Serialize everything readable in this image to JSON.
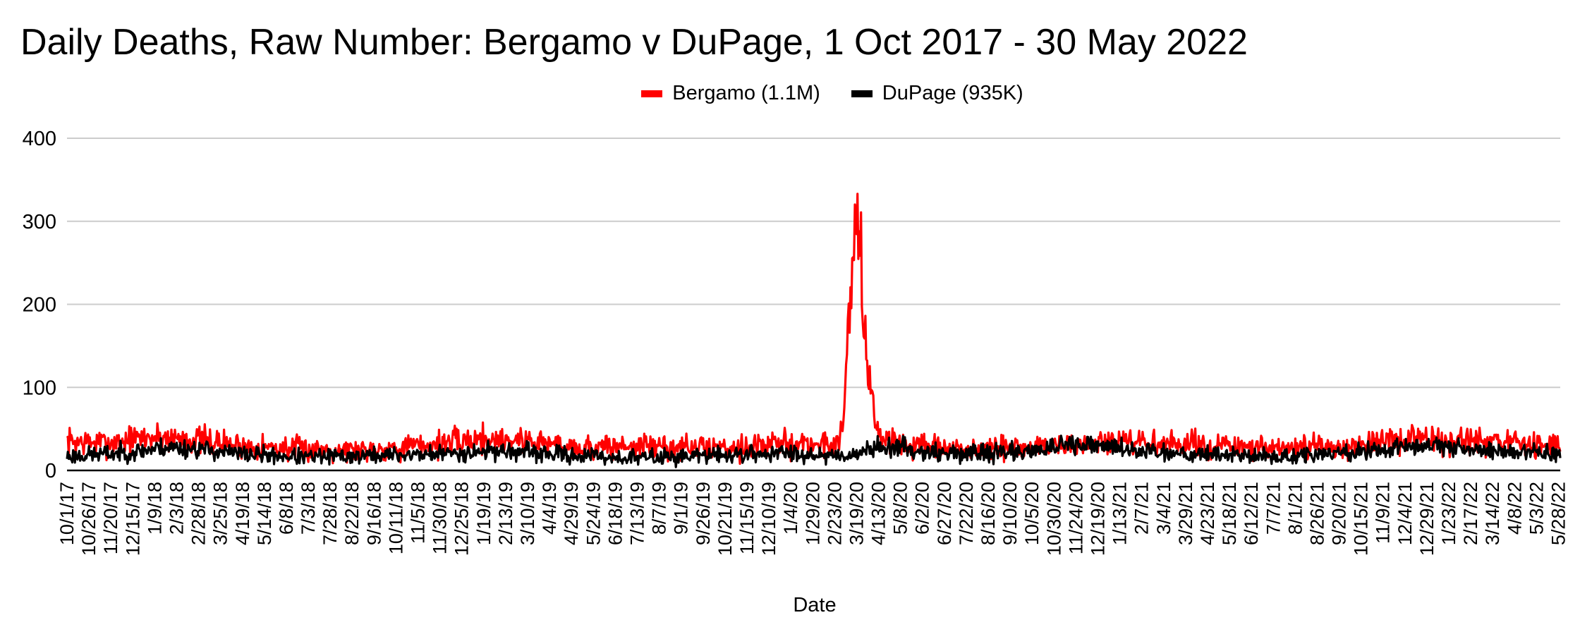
{
  "title": "Daily Deaths, Raw Number: Bergamo v DuPage, 1 Oct 2017 - 30 May 2022",
  "colors": {
    "bergamo": "#ff0000",
    "dupage": "#000000",
    "grid": "#cccccc",
    "axis": "#000000"
  },
  "chart_data": {
    "type": "line",
    "title": "Daily Deaths, Raw Number: Bergamo v DuPage, 1 Oct 2017 - 30 May 2022",
    "xlabel": "Date",
    "ylabel": "",
    "ylim": [
      0,
      400
    ],
    "yticks": [
      "0",
      "100",
      "200",
      "300",
      "400"
    ],
    "grid": true,
    "legend_position": "top-center",
    "x_start": "2017-10-01",
    "x_end": "2022-05-30",
    "xtick_labels": [
      "10/1/17",
      "10/26/17",
      "11/20/17",
      "12/15/17",
      "1/9/18",
      "2/3/18",
      "2/28/18",
      "3/25/18",
      "4/19/18",
      "5/14/18",
      "6/8/18",
      "7/3/18",
      "7/28/18",
      "8/22/18",
      "9/16/18",
      "10/11/18",
      "11/5/18",
      "11/30/18",
      "12/25/18",
      "1/19/19",
      "2/13/19",
      "3/10/19",
      "4/4/19",
      "4/29/19",
      "5/24/19",
      "6/18/19",
      "7/13/19",
      "8/7/19",
      "9/1/19",
      "9/26/19",
      "10/21/19",
      "11/15/19",
      "12/10/19",
      "1/4/20",
      "1/29/20",
      "2/23/20",
      "3/19/20",
      "4/13/20",
      "5/8/20",
      "6/2/20",
      "6/27/20",
      "7/22/20",
      "8/16/20",
      "9/10/20",
      "10/5/20",
      "10/30/20",
      "11/24/20",
      "12/19/20",
      "1/13/21",
      "2/7/21",
      "3/4/21",
      "3/29/21",
      "4/23/21",
      "5/18/21",
      "6/12/21",
      "7/7/21",
      "8/1/21",
      "8/26/21",
      "9/20/21",
      "10/15/21",
      "11/9/21",
      "12/4/21",
      "12/29/21",
      "1/23/22",
      "2/17/22",
      "3/14/22",
      "4/8/22",
      "5/3/22",
      "5/28/22"
    ],
    "series": [
      {
        "name": "Bergamo (1.1M)",
        "points": [
          [
            "2017-10-01",
            35
          ],
          [
            "2017-11-15",
            33
          ],
          [
            "2018-01-01",
            40
          ],
          [
            "2018-02-20",
            38
          ],
          [
            "2018-04-15",
            30
          ],
          [
            "2018-06-15",
            26
          ],
          [
            "2018-09-01",
            25
          ],
          [
            "2018-11-15",
            30
          ],
          [
            "2019-01-15",
            38
          ],
          [
            "2019-03-10",
            36
          ],
          [
            "2019-05-15",
            27
          ],
          [
            "2019-07-15",
            30
          ],
          [
            "2019-09-15",
            27
          ],
          [
            "2019-11-15",
            29
          ],
          [
            "2020-01-15",
            33
          ],
          [
            "2020-02-20",
            30
          ],
          [
            "2020-02-28",
            38
          ],
          [
            "2020-03-05",
            80
          ],
          [
            "2020-03-10",
            170
          ],
          [
            "2020-03-14",
            250
          ],
          [
            "2020-03-17",
            285
          ],
          [
            "2020-03-19",
            335
          ],
          [
            "2020-03-21",
            300
          ],
          [
            "2020-03-24",
            270
          ],
          [
            "2020-03-28",
            180
          ],
          [
            "2020-04-01",
            110
          ],
          [
            "2020-04-05",
            80
          ],
          [
            "2020-04-10",
            55
          ],
          [
            "2020-04-16",
            42
          ],
          [
            "2020-04-25",
            35
          ],
          [
            "2020-05-15",
            30
          ],
          [
            "2020-07-01",
            24
          ],
          [
            "2020-09-01",
            26
          ],
          [
            "2020-11-01",
            30
          ],
          [
            "2021-01-01",
            33
          ],
          [
            "2021-03-01",
            32
          ],
          [
            "2021-05-01",
            30
          ],
          [
            "2021-07-01",
            25
          ],
          [
            "2021-09-01",
            28
          ],
          [
            "2021-11-01",
            32
          ],
          [
            "2022-01-01",
            38
          ],
          [
            "2022-03-01",
            33
          ],
          [
            "2022-05-30",
            30
          ]
        ]
      },
      {
        "name": "DuPage (935K)",
        "points": [
          [
            "2017-10-01",
            17
          ],
          [
            "2017-12-15",
            22
          ],
          [
            "2018-01-20",
            28
          ],
          [
            "2018-02-28",
            26
          ],
          [
            "2018-04-15",
            20
          ],
          [
            "2018-07-01",
            16
          ],
          [
            "2018-09-15",
            18
          ],
          [
            "2018-12-01",
            20
          ],
          [
            "2019-02-01",
            24
          ],
          [
            "2019-04-01",
            20
          ],
          [
            "2019-07-01",
            15
          ],
          [
            "2019-10-01",
            18
          ],
          [
            "2020-01-01",
            21
          ],
          [
            "2020-03-01",
            18
          ],
          [
            "2020-03-25",
            22
          ],
          [
            "2020-04-20",
            30
          ],
          [
            "2020-05-15",
            26
          ],
          [
            "2020-07-01",
            20
          ],
          [
            "2020-09-15",
            22
          ],
          [
            "2020-11-20",
            30
          ],
          [
            "2021-01-05",
            28
          ],
          [
            "2021-03-01",
            22
          ],
          [
            "2021-05-01",
            20
          ],
          [
            "2021-07-15",
            16
          ],
          [
            "2021-09-15",
            20
          ],
          [
            "2021-12-01",
            27
          ],
          [
            "2022-01-10",
            32
          ],
          [
            "2022-03-01",
            24
          ],
          [
            "2022-05-30",
            20
          ]
        ]
      }
    ]
  }
}
